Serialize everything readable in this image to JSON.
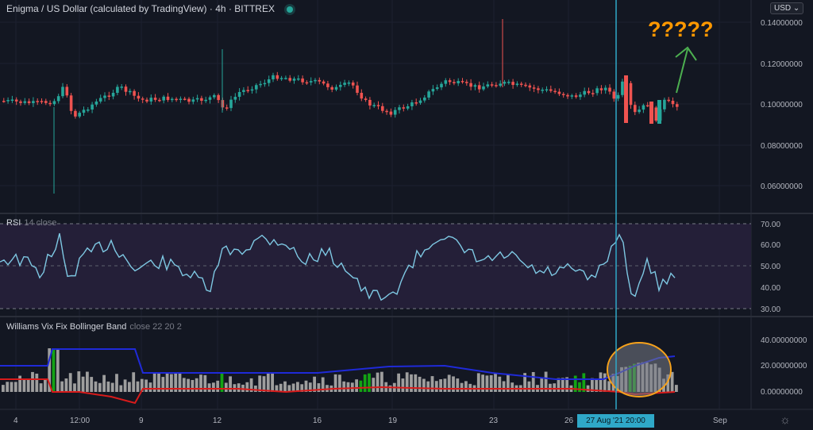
{
  "header": {
    "symbol_title": "Enigma / US Dollar (calculated by TradingView)",
    "timeframe": "4h",
    "exchange": "BITTREX",
    "separator": "·"
  },
  "currency_button": "USD",
  "price_axis": [
    "0.14000000",
    "0.12000000",
    "0.10000000",
    "0.08000000",
    "0.06000000"
  ],
  "annotation": {
    "text": "?????",
    "arrow_color": "#4caf50",
    "text_color": "#ff9800"
  },
  "rsi": {
    "title": "RSI",
    "args": "14 close",
    "axis": [
      "70.00",
      "60.00",
      "50.00",
      "40.00",
      "30.00"
    ]
  },
  "wvf": {
    "title": "Williams Vix Fix Bollinger Band",
    "args": "close 22 20 2",
    "axis": [
      "40.00000000",
      "20.00000000",
      "0.00000000"
    ]
  },
  "time_axis": [
    "4",
    "12:00",
    "9",
    "12",
    "16",
    "19",
    "23",
    "26",
    "Sep"
  ],
  "crosshair_label": "27 Aug '21  20:00",
  "colors": {
    "background": "#131722",
    "up": "#26a69a",
    "down": "#ef5350",
    "rsi_line": "#7ec8e3",
    "rsi_band": "#2a2540",
    "crosshair": "#2fa8c8",
    "upper_band": "#1f2ad8",
    "lower_band": "#d81b1b",
    "bar_gray": "#9e9e9e",
    "bar_green": "#13a314",
    "highlight_circle": "#f7a21b"
  },
  "icons": {
    "settings": "gear-icon",
    "dropdown": "chevron-down-icon",
    "live": "live-dot-icon"
  }
}
